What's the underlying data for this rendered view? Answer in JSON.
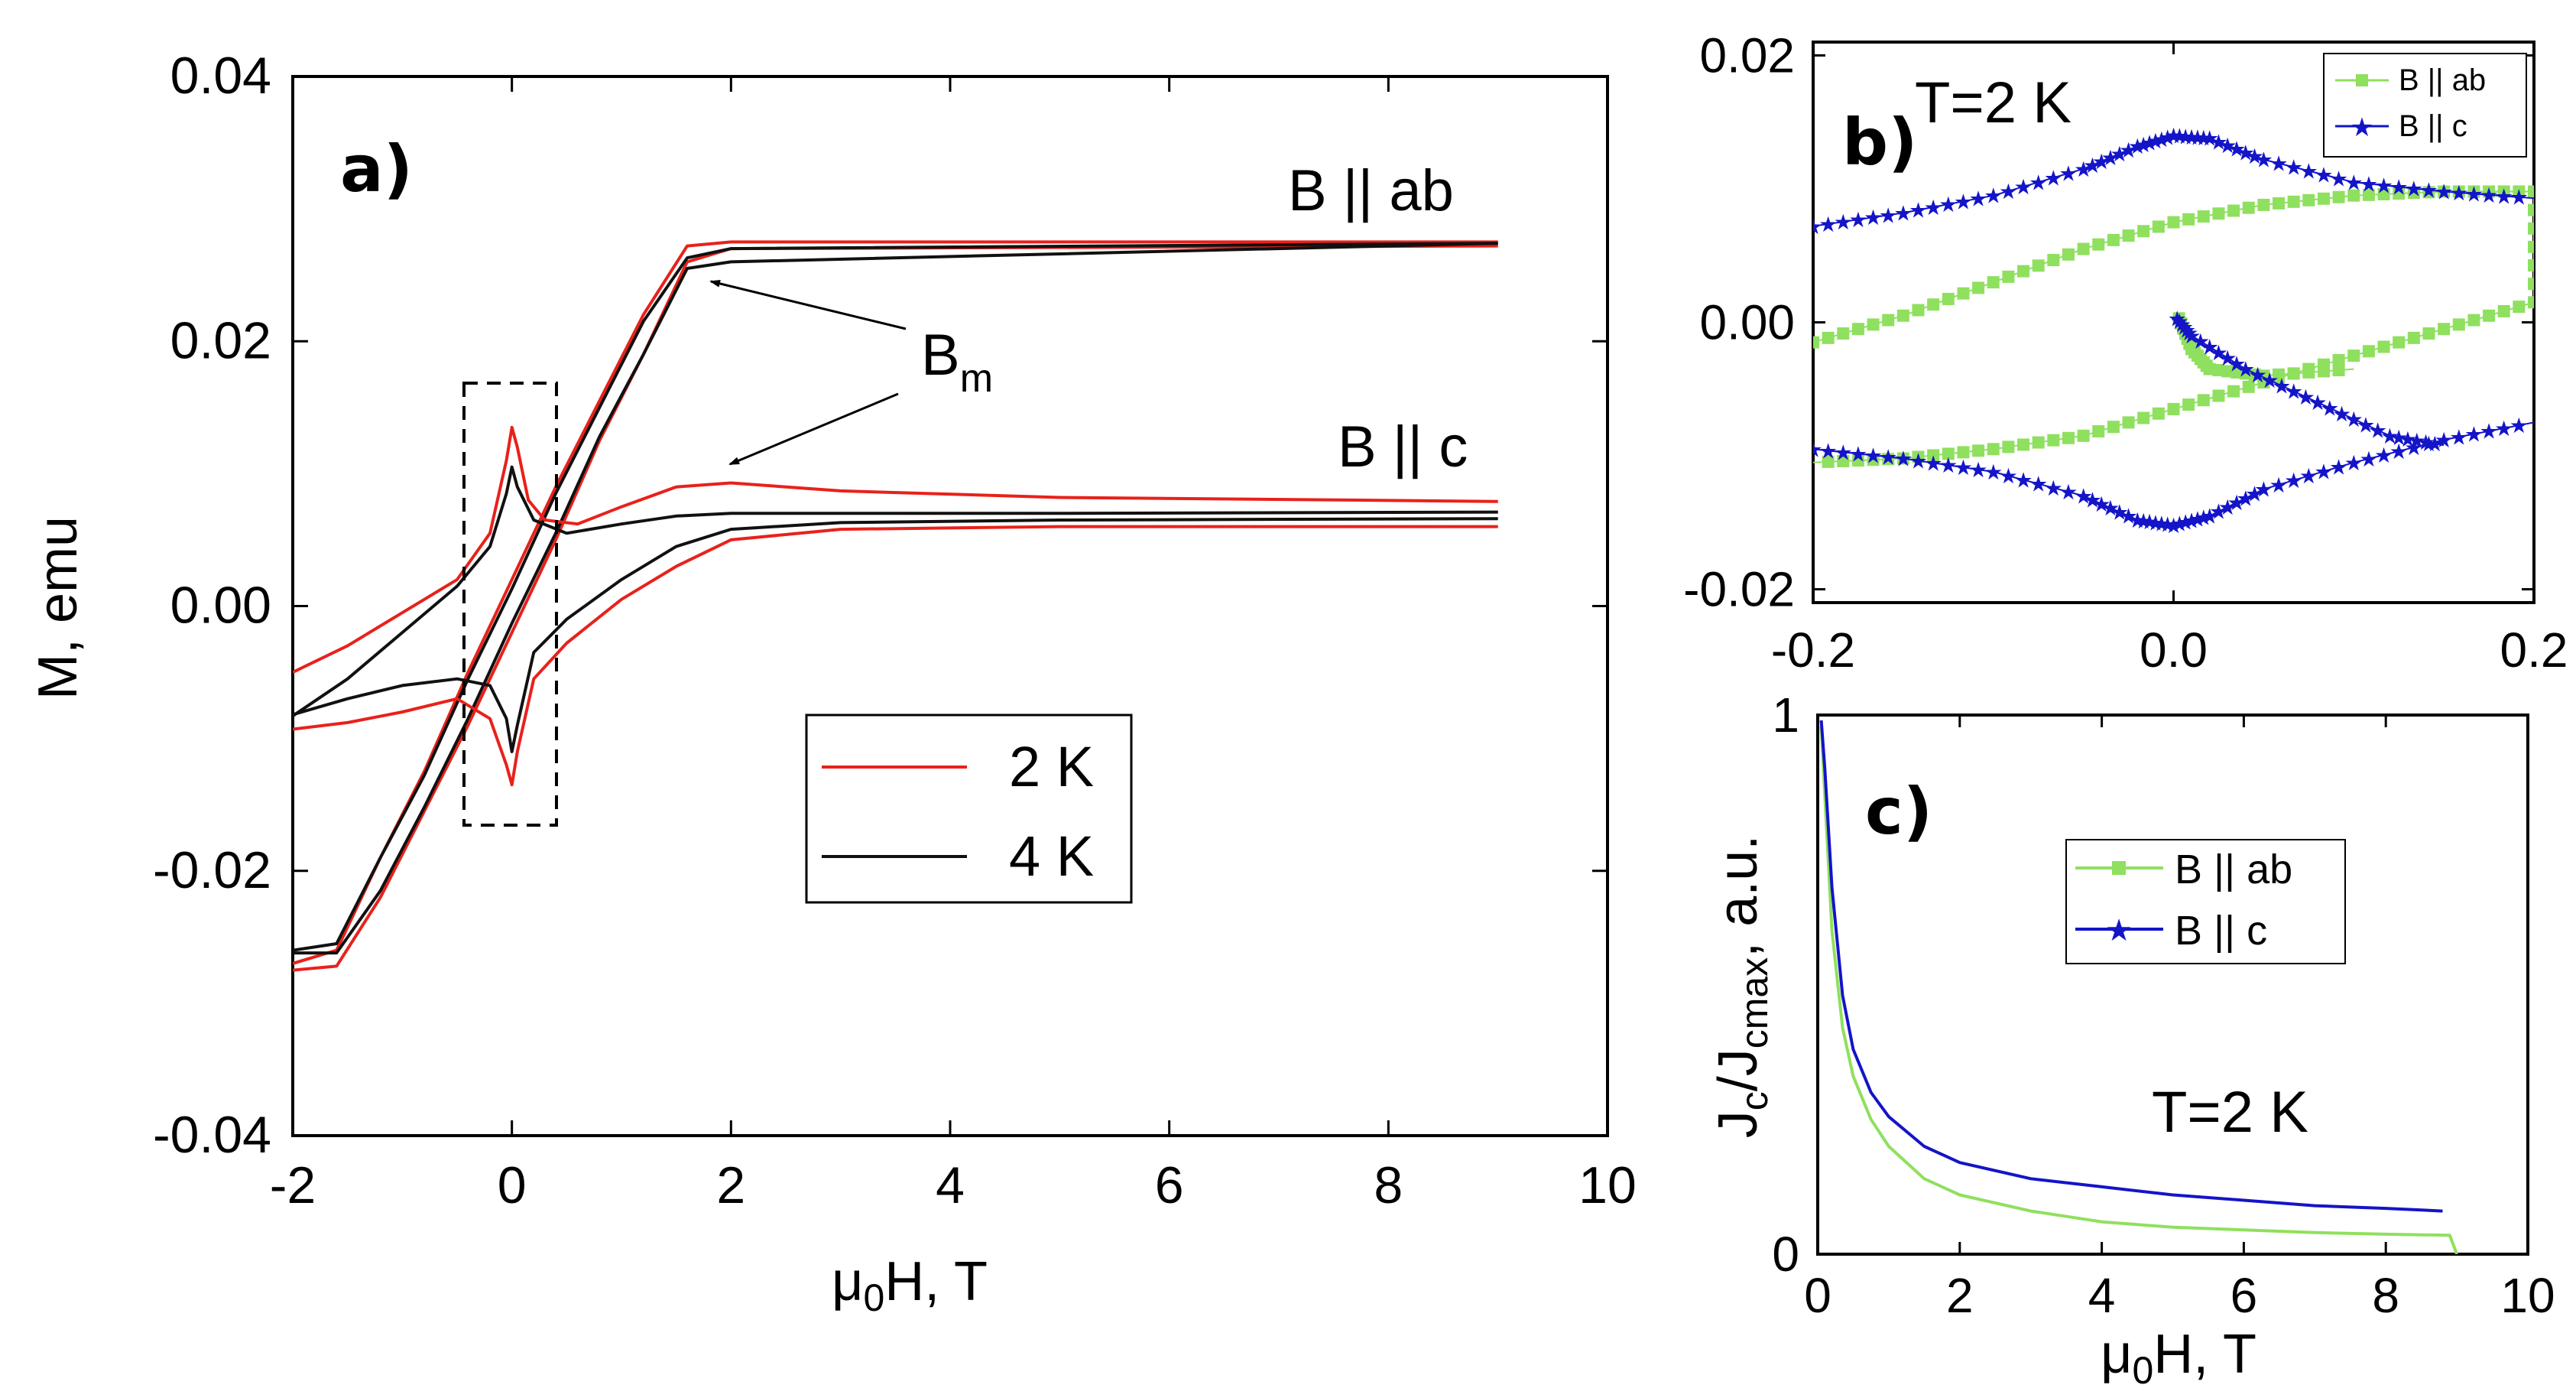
{
  "colors": {
    "red": "#e8211b",
    "black": "#111111",
    "green": "#8fe05e",
    "blue": "#1414c8"
  },
  "chart_data": [
    {
      "id": "a",
      "type": "line",
      "panel_label": "a)",
      "xlabel_mu": "μ",
      "xlabel_sub": "0",
      "xlabel_rest": "H, T",
      "ylabel": "M, emu",
      "xlim": [
        -2,
        10
      ],
      "ylim": [
        -0.04,
        0.04
      ],
      "xticks": [
        -2,
        0,
        2,
        4,
        6,
        8,
        10
      ],
      "yticks": [
        0.04,
        0.02,
        0.0,
        -0.02,
        -0.04
      ],
      "xtick_labels": [
        "-2",
        "0",
        "2",
        "4",
        "6",
        "8",
        "10"
      ],
      "ytick_labels": [
        "0.04",
        "0.02",
        "0.00",
        "-0.02",
        "-0.04"
      ],
      "annotations": {
        "b_ab": "B || ab",
        "b_c": "B || c",
        "bm_main": "B",
        "bm_sub": "m"
      },
      "legend": [
        {
          "label": "2 K",
          "color": "#e8211b"
        },
        {
          "label": "4 K",
          "color": "#111111"
        }
      ],
      "series": [
        {
          "name": "2 K B||ab upper",
          "color": "#e8211b",
          "points": [
            [
              -2,
              -0.027
            ],
            [
              -1.6,
              -0.026
            ],
            [
              -1.2,
              -0.019
            ],
            [
              -0.8,
              -0.0125
            ],
            [
              -0.4,
              -0.005
            ],
            [
              0,
              0.002
            ],
            [
              0.4,
              0.009
            ],
            [
              0.8,
              0.0155
            ],
            [
              1.2,
              0.022
            ],
            [
              1.6,
              0.0272
            ],
            [
              2,
              0.0275
            ],
            [
              9,
              0.0275
            ]
          ]
        },
        {
          "name": "2 K B||ab lower",
          "color": "#e8211b",
          "points": [
            [
              -2,
              -0.0275
            ],
            [
              -1.6,
              -0.0272
            ],
            [
              -1.2,
              -0.022
            ],
            [
              -0.8,
              -0.0155
            ],
            [
              -0.4,
              -0.009
            ],
            [
              0,
              -0.002
            ],
            [
              0.4,
              0.005
            ],
            [
              0.8,
              0.0125
            ],
            [
              1.2,
              0.019
            ],
            [
              1.6,
              0.026
            ],
            [
              2,
              0.027
            ],
            [
              9,
              0.0272
            ]
          ]
        },
        {
          "name": "4 K B||ab upper",
          "color": "#111111",
          "points": [
            [
              -2,
              -0.026
            ],
            [
              -1.6,
              -0.0255
            ],
            [
              -1.2,
              -0.019
            ],
            [
              -0.8,
              -0.0128
            ],
            [
              -0.4,
              -0.0055
            ],
            [
              0,
              0.0013
            ],
            [
              0.4,
              0.0085
            ],
            [
              0.8,
              0.015
            ],
            [
              1.2,
              0.0215
            ],
            [
              1.6,
              0.0263
            ],
            [
              2,
              0.027
            ],
            [
              9,
              0.0274
            ]
          ]
        },
        {
          "name": "4 K B||ab lower",
          "color": "#111111",
          "points": [
            [
              -2,
              -0.0262
            ],
            [
              -1.6,
              -0.0262
            ],
            [
              -1.2,
              -0.0215
            ],
            [
              -0.8,
              -0.0152
            ],
            [
              -0.4,
              -0.0085
            ],
            [
              0,
              -0.0013
            ],
            [
              0.4,
              0.0055
            ],
            [
              0.8,
              0.0128
            ],
            [
              1.2,
              0.019
            ],
            [
              1.6,
              0.0255
            ],
            [
              2,
              0.026
            ],
            [
              9,
              0.0274
            ]
          ]
        },
        {
          "name": "2 K B||c upper",
          "color": "#e8211b",
          "points": [
            [
              -2,
              -0.005
            ],
            [
              -1.5,
              -0.003
            ],
            [
              -1,
              -0.0005
            ],
            [
              -0.5,
              0.002
            ],
            [
              -0.2,
              0.0055
            ],
            [
              -0.05,
              0.011
            ],
            [
              0,
              0.0135
            ],
            [
              0.05,
              0.012
            ],
            [
              0.15,
              0.008
            ],
            [
              0.3,
              0.0065
            ],
            [
              0.6,
              0.0062
            ],
            [
              1,
              0.0075
            ],
            [
              1.5,
              0.009
            ],
            [
              2,
              0.0093
            ],
            [
              3,
              0.0087
            ],
            [
              5,
              0.0082
            ],
            [
              9,
              0.0079
            ]
          ]
        },
        {
          "name": "2 K B||c lower",
          "color": "#e8211b",
          "points": [
            [
              -2,
              -0.0093
            ],
            [
              -1.5,
              -0.0088
            ],
            [
              -1,
              -0.008
            ],
            [
              -0.5,
              -0.007
            ],
            [
              -0.2,
              -0.0085
            ],
            [
              -0.05,
              -0.012
            ],
            [
              0,
              -0.0135
            ],
            [
              0.05,
              -0.011
            ],
            [
              0.2,
              -0.0055
            ],
            [
              0.5,
              -0.0028
            ],
            [
              1,
              0.0005
            ],
            [
              1.5,
              0.003
            ],
            [
              2,
              0.005
            ],
            [
              3,
              0.0058
            ],
            [
              5,
              0.006
            ],
            [
              9,
              0.006
            ]
          ]
        },
        {
          "name": "4 K B||c upper",
          "color": "#111111",
          "points": [
            [
              -2,
              -0.0082
            ],
            [
              -1.5,
              -0.007
            ],
            [
              -1,
              -0.006
            ],
            [
              -0.5,
              -0.0055
            ],
            [
              -0.2,
              -0.006
            ],
            [
              -0.05,
              -0.0085
            ],
            [
              0,
              -0.011
            ],
            [
              0.05,
              -0.009
            ],
            [
              0.2,
              -0.0035
            ],
            [
              0.5,
              -0.001
            ],
            [
              1,
              0.002
            ],
            [
              1.5,
              0.0045
            ],
            [
              2,
              0.0058
            ],
            [
              3,
              0.0063
            ],
            [
              5,
              0.0065
            ],
            [
              9,
              0.0066
            ]
          ]
        },
        {
          "name": "4 K B||c lower",
          "color": "#111111",
          "points": [
            [
              -2,
              -0.0083
            ],
            [
              -1.5,
              -0.0055
            ],
            [
              -1,
              -0.002
            ],
            [
              -0.5,
              0.0015
            ],
            [
              -0.2,
              0.0045
            ],
            [
              -0.05,
              0.0085
            ],
            [
              0,
              0.0105
            ],
            [
              0.05,
              0.009
            ],
            [
              0.2,
              0.0065
            ],
            [
              0.5,
              0.0055
            ],
            [
              1,
              0.0062
            ],
            [
              1.5,
              0.0068
            ],
            [
              2,
              0.007
            ],
            [
              5,
              0.007
            ],
            [
              9,
              0.0071
            ]
          ]
        }
      ]
    },
    {
      "id": "b",
      "type": "line",
      "panel_label": "b)",
      "title": "T=2 K",
      "xlim": [
        -0.2,
        0.2
      ],
      "ylim": [
        -0.021,
        0.021
      ],
      "xticks": [
        -0.2,
        0.0,
        0.2
      ],
      "yticks": [
        0.02,
        0.0,
        -0.02
      ],
      "xtick_labels": [
        "-0.2",
        "0.0",
        "0.2"
      ],
      "ytick_labels": [
        "0.02",
        "0.00",
        "-0.02"
      ],
      "legend": [
        {
          "label": "B || ab",
          "color": "#8fe05e",
          "marker": "square"
        },
        {
          "label": "B || c",
          "color": "#1414c8",
          "marker": "star"
        }
      ],
      "series": [
        {
          "name": "B || ab",
          "color": "#8fe05e",
          "marker": "square",
          "points": [
            [
              -0.2,
              -0.0015
            ],
            [
              -0.15,
              0.0005
            ],
            [
              -0.1,
              0.003
            ],
            [
              -0.05,
              0.0055
            ],
            [
              0,
              0.0075
            ],
            [
              0.05,
              0.0088
            ],
            [
              0.1,
              0.0095
            ],
            [
              0.15,
              0.0098
            ],
            [
              0.2,
              0.0098
            ],
            [
              0.2,
              0.0015
            ],
            [
              0.15,
              -0.0005
            ],
            [
              0.1,
              -0.0025
            ],
            [
              0.05,
              -0.0045
            ],
            [
              0.0,
              -0.0065
            ],
            [
              -0.05,
              -0.0085
            ],
            [
              -0.1,
              -0.0095
            ],
            [
              -0.15,
              -0.0102
            ],
            [
              -0.2,
              -0.0105
            ]
          ]
        },
        {
          "name": "B || ab virgin",
          "color": "#8fe05e",
          "marker": "square",
          "points": [
            [
              0.003,
              0.0003
            ],
            [
              0.01,
              -0.002
            ],
            [
              0.02,
              -0.0035
            ],
            [
              0.05,
              -0.004
            ],
            [
              0.1,
              -0.0035
            ]
          ]
        },
        {
          "name": "B || c",
          "color": "#1414c8",
          "marker": "star",
          "points": [
            [
              -0.2,
              0.0072
            ],
            [
              -0.15,
              0.0082
            ],
            [
              -0.1,
              0.0095
            ],
            [
              -0.05,
              0.0115
            ],
            [
              -0.02,
              0.0132
            ],
            [
              0.0,
              0.014
            ],
            [
              0.02,
              0.0138
            ],
            [
              0.05,
              0.0122
            ],
            [
              0.1,
              0.0105
            ],
            [
              0.15,
              0.0098
            ],
            [
              0.2,
              0.0093
            ]
          ]
        },
        {
          "name": "B || c lower",
          "color": "#1414c8",
          "marker": "star",
          "points": [
            [
              -0.2,
              -0.0095
            ],
            [
              -0.15,
              -0.0102
            ],
            [
              -0.1,
              -0.0112
            ],
            [
              -0.05,
              -0.013
            ],
            [
              -0.02,
              -0.0148
            ],
            [
              0.0,
              -0.0152
            ],
            [
              0.02,
              -0.0145
            ],
            [
              0.05,
              -0.0125
            ],
            [
              0.1,
              -0.0105
            ],
            [
              0.15,
              -0.0088
            ],
            [
              0.2,
              -0.0075
            ]
          ]
        },
        {
          "name": "B || c virgin",
          "color": "#1414c8",
          "marker": "star",
          "points": [
            [
              0.002,
              0.0003
            ],
            [
              0.01,
              -0.001
            ],
            [
              0.04,
              -0.0035
            ],
            [
              0.08,
              -0.006
            ],
            [
              0.12,
              -0.0085
            ],
            [
              0.15,
              -0.0092
            ]
          ]
        }
      ]
    },
    {
      "id": "c",
      "type": "line",
      "panel_label": "c)",
      "title": "T=2 K",
      "xlabel_mu": "μ",
      "xlabel_sub": "0",
      "xlabel_rest": "H, T",
      "ylabel_main": "J",
      "ylabel_sub1": "c",
      "ylabel_mid": "/J",
      "ylabel_sub2": "cmax",
      "ylabel_rest": ", a.u.",
      "xlim": [
        0,
        10
      ],
      "ylim": [
        0,
        1
      ],
      "xticks": [
        0,
        2,
        4,
        6,
        8,
        10
      ],
      "yticks": [
        1,
        0
      ],
      "xtick_labels": [
        "0",
        "2",
        "4",
        "6",
        "8",
        "10"
      ],
      "ytick_labels": [
        "1",
        "0"
      ],
      "legend": [
        {
          "label": "B || ab",
          "color": "#8fe05e",
          "marker": "square"
        },
        {
          "label": "B || c",
          "color": "#1414c8",
          "marker": "star"
        }
      ],
      "series": [
        {
          "name": "B || ab",
          "color": "#8fe05e",
          "points": [
            [
              0.05,
              0.98
            ],
            [
              0.1,
              0.85
            ],
            [
              0.2,
              0.6
            ],
            [
              0.35,
              0.42
            ],
            [
              0.5,
              0.33
            ],
            [
              0.75,
              0.25
            ],
            [
              1,
              0.2
            ],
            [
              1.5,
              0.14
            ],
            [
              2,
              0.11
            ],
            [
              3,
              0.08
            ],
            [
              4,
              0.06
            ],
            [
              5,
              0.05
            ],
            [
              6,
              0.045
            ],
            [
              7,
              0.04
            ],
            [
              8,
              0.037
            ],
            [
              8.9,
              0.035
            ],
            [
              9,
              0.0
            ]
          ]
        },
        {
          "name": "B || c",
          "color": "#1414c8",
          "points": [
            [
              0.05,
              0.99
            ],
            [
              0.1,
              0.9
            ],
            [
              0.2,
              0.68
            ],
            [
              0.35,
              0.48
            ],
            [
              0.5,
              0.38
            ],
            [
              0.75,
              0.3
            ],
            [
              1,
              0.255
            ],
            [
              1.5,
              0.2
            ],
            [
              2,
              0.17
            ],
            [
              3,
              0.14
            ],
            [
              4,
              0.125
            ],
            [
              5,
              0.11
            ],
            [
              6,
              0.1
            ],
            [
              7,
              0.09
            ],
            [
              8,
              0.085
            ],
            [
              8.8,
              0.08
            ]
          ]
        }
      ]
    }
  ]
}
